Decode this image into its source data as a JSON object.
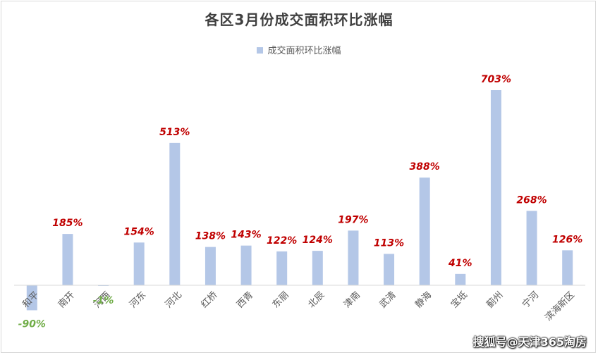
{
  "chart_data": {
    "type": "bar",
    "title": "各区3月份成交面积环比涨幅",
    "legend": "成交面积环比涨幅",
    "legend_position": "top",
    "categories": [
      "和平",
      "南开",
      "河西",
      "河东",
      "河北",
      "红桥",
      "西青",
      "东丽",
      "北辰",
      "津南",
      "武清",
      "静海",
      "宝坻",
      "蓟州",
      "宁河",
      "滨海新区"
    ],
    "values": [
      -90,
      185,
      -1,
      154,
      513,
      138,
      143,
      122,
      124,
      197,
      113,
      388,
      41,
      703,
      268,
      126
    ],
    "labels": [
      "-90%",
      "185%",
      "-1%",
      "154%",
      "513%",
      "138%",
      "143%",
      "122%",
      "124%",
      "197%",
      "113%",
      "388%",
      "41%",
      "703%",
      "268%",
      "126%"
    ],
    "unit": "%",
    "ylim": [
      -100,
      710
    ],
    "grid": false,
    "colors": {
      "bar": "#b4c7e7",
      "positive_label": "#c00000",
      "negative_label": "#70ad47",
      "axis": "#d9d9d9"
    }
  },
  "watermark": "搜狐号@天津365淘房"
}
